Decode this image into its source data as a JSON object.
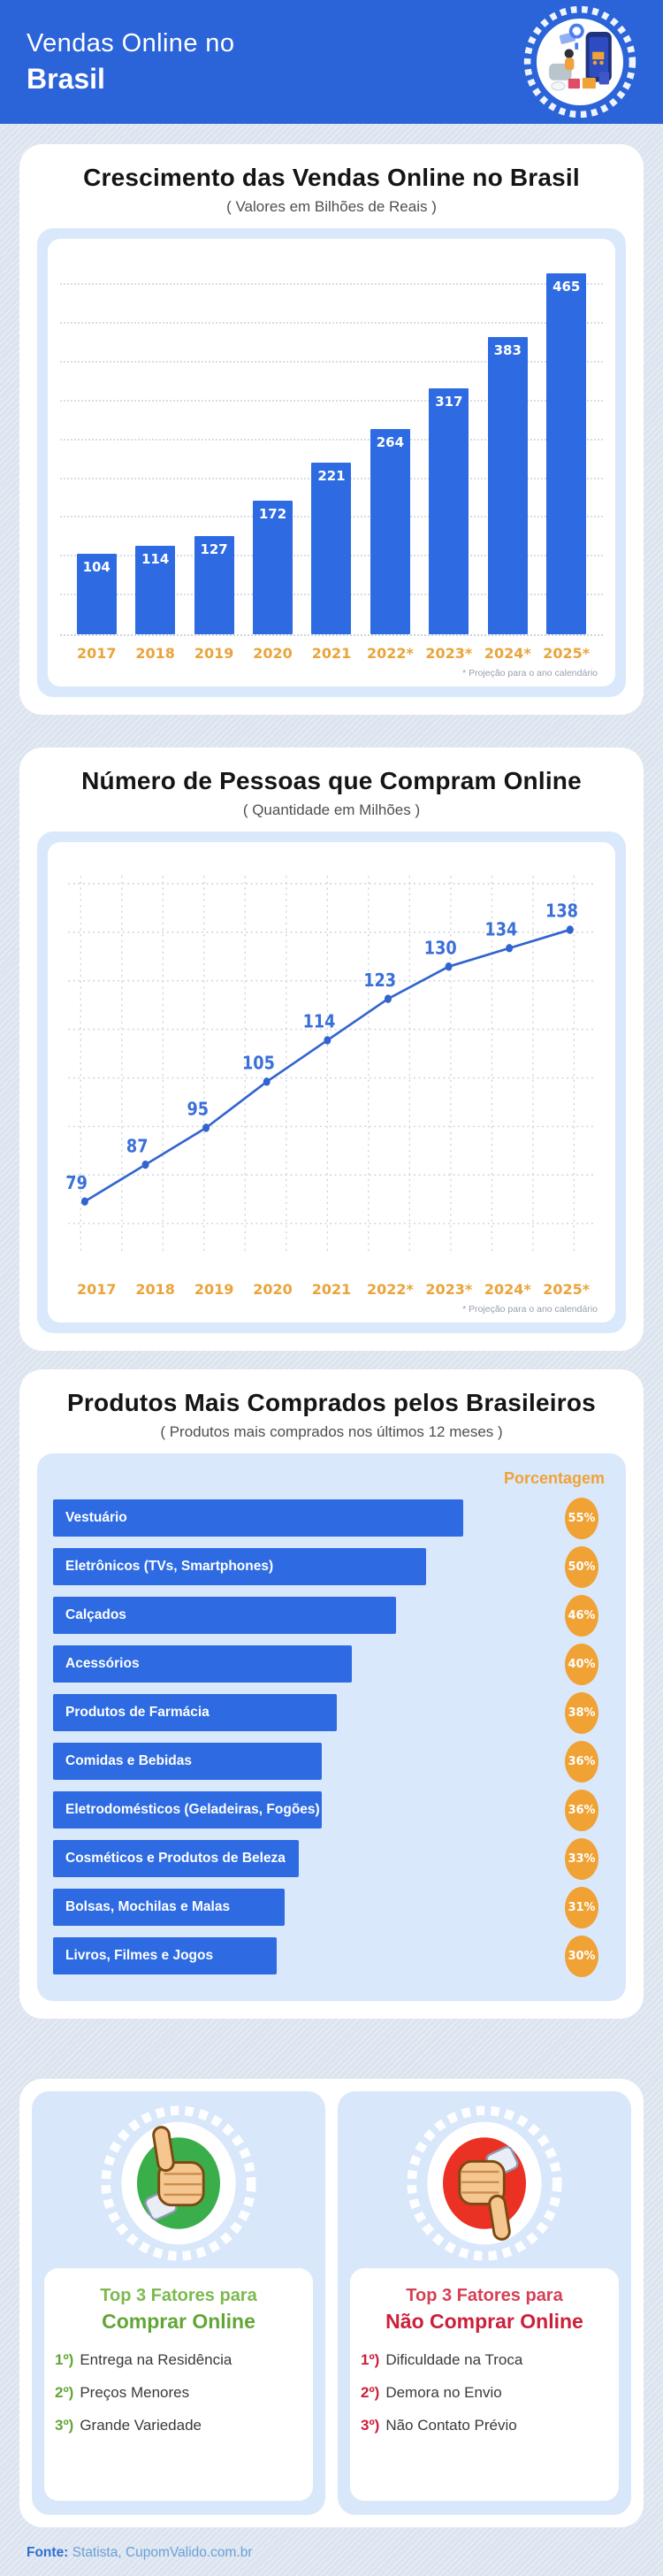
{
  "header": {
    "title_line1": "Vendas Online no",
    "title_line2": "Brasil",
    "badge_icon": "online-shopping-illustration"
  },
  "chart_data": [
    {
      "type": "bar",
      "title": "Crescimento das Vendas Online no Brasil",
      "subtitle": "( Valores em Bilhões de Reais )",
      "categories": [
        "2017",
        "2018",
        "2019",
        "2020",
        "2021",
        "2022*",
        "2023*",
        "2024*",
        "2025*"
      ],
      "values": [
        104,
        114,
        127,
        172,
        221,
        264,
        317,
        383,
        465
      ],
      "ylim": [
        0,
        480
      ],
      "gridline_step": 50,
      "grid": "horizontal-dotted",
      "legend": "none",
      "footnote": "* Projeção para o ano calendário",
      "bar_color": "#2e6be2",
      "value_label_color": "#ffffff",
      "category_label_color": "#e9a43c"
    },
    {
      "type": "line",
      "title": "Número de Pessoas que Compram Online",
      "subtitle": "( Quantidade em Milhões )",
      "categories": [
        "2017",
        "2018",
        "2019",
        "2020",
        "2021",
        "2022*",
        "2023*",
        "2024*",
        "2025*"
      ],
      "values": [
        79,
        87,
        95,
        105,
        114,
        123,
        130,
        134,
        138
      ],
      "ylim": [
        70,
        148
      ],
      "grid": "square-dotted",
      "legend": "none",
      "footnote": "* Projeção para o ano calendário",
      "line_color": "#3264cf",
      "point_label_color": "#3a6fd8",
      "category_label_color": "#e9a43c"
    },
    {
      "type": "bar",
      "orientation": "horizontal",
      "title": "Produtos Mais Comprados pelos Brasileiros",
      "subtitle": "( Produtos mais comprados nos últimos 12 meses )",
      "column_header": "Porcentagem",
      "unit": "%",
      "items": [
        {
          "label": "Vestuário",
          "value": 55
        },
        {
          "label": "Eletrônicos (TVs, Smartphones)",
          "value": 50
        },
        {
          "label": "Calçados",
          "value": 46
        },
        {
          "label": "Acessórios",
          "value": 40
        },
        {
          "label": "Produtos de Farmácia",
          "value": 38
        },
        {
          "label": "Comidas e Bebidas",
          "value": 36
        },
        {
          "label": "Eletrodomésticos (Geladeiras, Fogões)",
          "value": 36
        },
        {
          "label": "Cosméticos e Produtos de Beleza",
          "value": 33
        },
        {
          "label": "Bolsas, Mochilas e Malas",
          "value": 31
        },
        {
          "label": "Livros, Filmes e Jogos",
          "value": 30
        }
      ],
      "bar_color": "#2e6be2",
      "badge_color": "#f0a235"
    }
  ],
  "factors": {
    "positive": {
      "icon": "thumbs-up-icon",
      "accent": "#63a637",
      "title_line1": "Top 3 Fatores para",
      "title_line2": "Comprar Online",
      "items": [
        {
          "rank": "1º)",
          "text": "Entrega na Residência"
        },
        {
          "rank": "2º)",
          "text": "Preços Menores"
        },
        {
          "rank": "3º)",
          "text": "Grande Variedade"
        }
      ]
    },
    "negative": {
      "icon": "thumbs-down-icon",
      "accent": "#cc1f39",
      "title_line1": "Top 3 Fatores para",
      "title_line2": "Não Comprar Online",
      "items": [
        {
          "rank": "1º)",
          "text": "Dificuldade na Troca"
        },
        {
          "rank": "2º)",
          "text": "Demora no Envio"
        },
        {
          "rank": "3º)",
          "text": "Não Contato Prévio"
        }
      ]
    }
  },
  "footer": {
    "label": "Fonte:",
    "sources": "Statista, CupomValido.com.br"
  },
  "colors": {
    "header_bg": "#2b63d8",
    "page_bg": "#dce4ef",
    "card_bg": "#ffffff",
    "panel_bg": "#d9e8fb",
    "bar_blue": "#2e6be2",
    "accent_orange": "#f0a235",
    "year_orange": "#e9a43c",
    "green": "#63a637",
    "red": "#cc1f39",
    "footer_blue": "#2f6fd0"
  }
}
